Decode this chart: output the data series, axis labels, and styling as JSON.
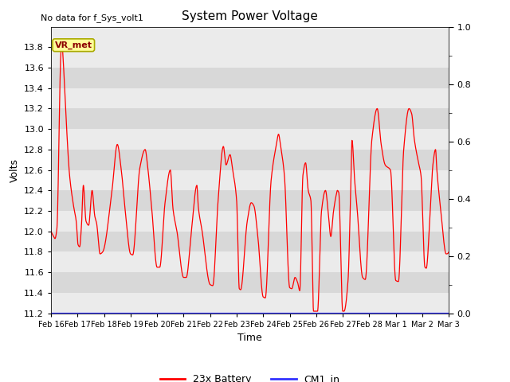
{
  "title": "System Power Voltage",
  "top_left_text": "No data for f_Sys_volt1",
  "ylabel_left": "Volts",
  "xlabel": "Time",
  "ylim_left": [
    11.2,
    14.0
  ],
  "ylim_right": [
    0.0,
    1.0
  ],
  "yticks_left": [
    11.2,
    11.4,
    11.6,
    11.8,
    12.0,
    12.2,
    12.4,
    12.6,
    12.8,
    13.0,
    13.2,
    13.4,
    13.6,
    13.8
  ],
  "yticks_right": [
    0.0,
    0.2,
    0.4,
    0.6,
    0.8,
    1.0
  ],
  "xtick_labels": [
    "Feb 16",
    "Feb 17",
    "Feb 18",
    "Feb 19",
    "Feb 20",
    "Feb 21",
    "Feb 22",
    "Feb 23",
    "Feb 24",
    "Feb 25",
    "Feb 26",
    "Feb 27",
    "Feb 28",
    "Mar 1",
    "Mar 2",
    "Mar 3"
  ],
  "battery_color": "#FF0000",
  "cm1_color": "#3333FF",
  "bg_color_light": "#EBEBEB",
  "bg_color_dark": "#D8D8D8",
  "annotation_text": "VR_met",
  "legend_labels": [
    "23x Battery",
    "CM1_in"
  ],
  "legend_colors": [
    "#FF0000",
    "#3333FF"
  ]
}
